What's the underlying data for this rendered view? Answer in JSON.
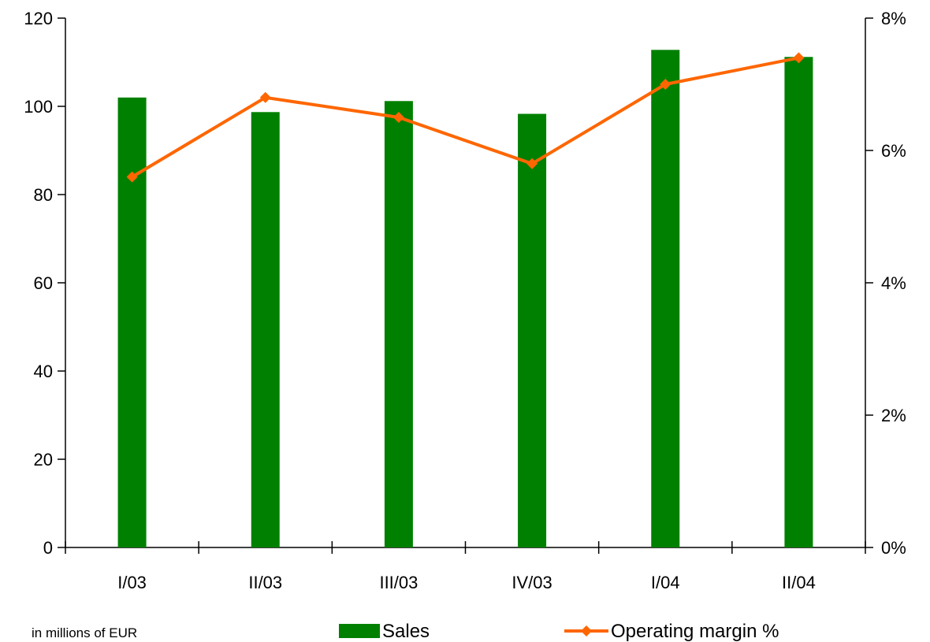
{
  "chart_data": {
    "type": "bar",
    "categories": [
      "I/03",
      "II/03",
      "III/03",
      "IV/03",
      "I/04",
      "II/04"
    ],
    "series": [
      {
        "name": "Sales",
        "type": "bar",
        "axis": "left",
        "color": "#008000",
        "values": [
          102,
          98.7,
          101.2,
          98.3,
          112.8,
          111.2
        ]
      },
      {
        "name": "Operating margin %",
        "type": "line",
        "axis": "right",
        "color": "#FF6600",
        "marker": "diamond",
        "values": [
          5.6,
          6.8,
          6.5,
          5.8,
          7.0,
          7.4
        ]
      }
    ],
    "y_left": {
      "min": 0,
      "max": 120,
      "ticks": [
        "0",
        "20",
        "40",
        "60",
        "80",
        "100",
        "120"
      ]
    },
    "y_right": {
      "min": 0,
      "max": 8,
      "ticks": [
        "0%",
        "2%",
        "4%",
        "6%",
        "8%"
      ]
    },
    "grid": false,
    "legend_position": "bottom",
    "note": "in millions of EUR"
  }
}
